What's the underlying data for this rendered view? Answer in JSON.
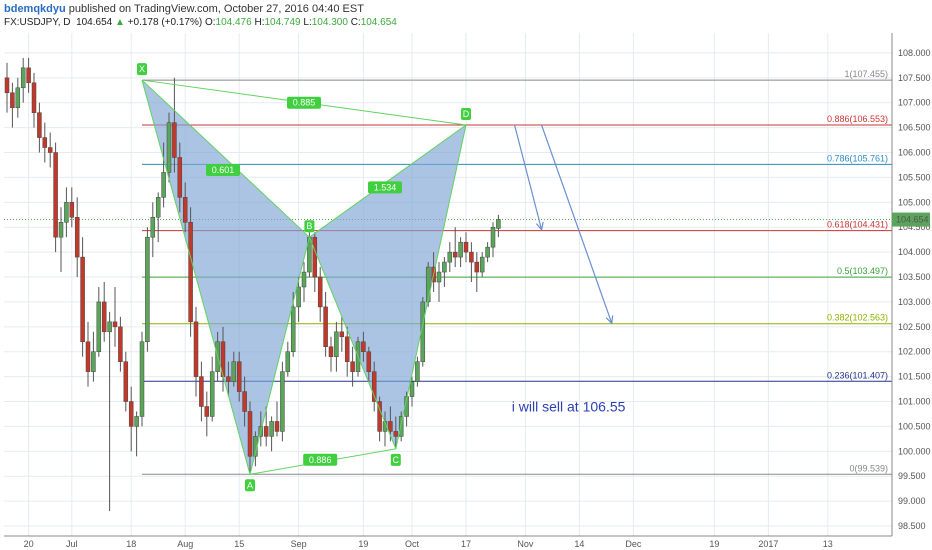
{
  "header": {
    "author": "bdemqkdyu",
    "published": " published on TradingView.com, October 27, 2016 04:40 EST",
    "symbol": "FX:USDJPY, D",
    "price": "104.654",
    "arrow": "▲",
    "change": "+0.178 (+0.17%)",
    "o_label": "O:",
    "o_val": "104.476",
    "h_label": "H:",
    "h_val": "104.749",
    "l_label": "L:",
    "l_val": "104.300",
    "c_label": "C:",
    "c_val": "104.654"
  },
  "colors": {
    "up": "#5aa55a",
    "down": "#c0392b",
    "pattern_fill": "#7ea4d6",
    "pattern_line": "#5fd35f",
    "arrow": "#6a8fd0",
    "note": "#2a3fb3"
  },
  "chart_data": {
    "type": "candlestick",
    "symbol": "FX:USDJPY",
    "timeframe": "D",
    "ylim": [
      98.3,
      108.4
    ],
    "y_ticks": [
      "108.000",
      "107.500",
      "107.000",
      "106.500",
      "106.000",
      "105.500",
      "105.000",
      "104.500",
      "104.000",
      "103.500",
      "103.000",
      "102.500",
      "102.000",
      "101.500",
      "101.000",
      "100.500",
      "100.000",
      "99.500",
      "99.000",
      "98.500"
    ],
    "x_ticks": [
      {
        "label": "20",
        "bar": 4
      },
      {
        "label": "Jul",
        "bar": 12
      },
      {
        "label": "18",
        "bar": 23
      },
      {
        "label": "Aug",
        "bar": 33
      },
      {
        "label": "15",
        "bar": 43
      },
      {
        "label": "Sep",
        "bar": 54
      },
      {
        "label": "19",
        "bar": 66
      },
      {
        "label": "Oct",
        "bar": 75
      },
      {
        "label": "17",
        "bar": 85
      },
      {
        "label": "Nov",
        "bar": 96
      },
      {
        "label": "14",
        "bar": 106
      },
      {
        "label": "Dec",
        "bar": 116
      },
      {
        "label": "19",
        "bar": 131
      },
      {
        "label": "2017",
        "bar": 141
      },
      {
        "label": "13",
        "bar": 152
      }
    ],
    "current_price": "104.654",
    "candles": [
      [
        107.5,
        107.8,
        106.8,
        107.2
      ],
      [
        107.2,
        107.4,
        106.5,
        106.9
      ],
      [
        106.9,
        107.5,
        106.7,
        107.3
      ],
      [
        107.3,
        107.9,
        107.0,
        107.7
      ],
      [
        107.7,
        107.9,
        107.2,
        107.4
      ],
      [
        107.4,
        107.6,
        106.5,
        106.8
      ],
      [
        106.8,
        107.0,
        106.0,
        106.3
      ],
      [
        106.3,
        106.6,
        105.8,
        106.1
      ],
      [
        106.1,
        106.4,
        105.7,
        106.0
      ],
      [
        106.0,
        106.2,
        104.0,
        104.3
      ],
      [
        104.3,
        104.9,
        103.6,
        104.6
      ],
      [
        104.6,
        105.3,
        104.3,
        105.0
      ],
      [
        105.0,
        105.3,
        104.5,
        104.7
      ],
      [
        104.7,
        105.1,
        103.5,
        103.9
      ],
      [
        103.9,
        104.3,
        101.9,
        102.2
      ],
      [
        102.2,
        102.6,
        101.3,
        101.6
      ],
      [
        101.6,
        102.4,
        101.4,
        102.0
      ],
      [
        102.0,
        103.3,
        101.9,
        103.0
      ],
      [
        103.0,
        103.4,
        102.2,
        102.4
      ],
      [
        102.4,
        102.8,
        98.8,
        102.6
      ],
      [
        102.6,
        103.3,
        102.1,
        102.5
      ],
      [
        102.5,
        102.7,
        101.6,
        101.8
      ],
      [
        101.8,
        102.0,
        100.8,
        101.0
      ],
      [
        101.0,
        101.3,
        100.0,
        100.5
      ],
      [
        100.5,
        100.8,
        99.9,
        100.7
      ],
      [
        100.7,
        102.4,
        100.5,
        102.2
      ],
      [
        102.2,
        104.5,
        102.0,
        104.3
      ],
      [
        104.3,
        105.0,
        103.9,
        104.7
      ],
      [
        104.7,
        105.2,
        104.2,
        105.1
      ],
      [
        105.1,
        106.2,
        104.9,
        105.6
      ],
      [
        105.6,
        106.8,
        105.4,
        106.6
      ],
      [
        106.6,
        107.5,
        105.6,
        105.9
      ],
      [
        105.9,
        106.2,
        104.8,
        105.1
      ],
      [
        105.1,
        105.4,
        104.4,
        104.6
      ],
      [
        104.6,
        104.9,
        102.3,
        102.6
      ],
      [
        102.6,
        102.9,
        101.1,
        101.5
      ],
      [
        101.5,
        101.8,
        100.6,
        100.9
      ],
      [
        100.9,
        101.2,
        100.3,
        100.7
      ],
      [
        100.7,
        101.9,
        100.6,
        101.6
      ],
      [
        101.6,
        102.4,
        101.4,
        102.2
      ],
      [
        102.2,
        102.5,
        101.2,
        101.5
      ],
      [
        101.5,
        101.8,
        101.1,
        101.4
      ],
      [
        101.4,
        102.0,
        101.3,
        101.8
      ],
      [
        101.8,
        102.0,
        101.0,
        101.2
      ],
      [
        101.2,
        101.5,
        100.5,
        100.8
      ],
      [
        100.8,
        101.0,
        99.55,
        99.9
      ],
      [
        99.9,
        100.4,
        99.7,
        100.3
      ],
      [
        100.3,
        100.8,
        100.1,
        100.5
      ],
      [
        100.5,
        100.9,
        100.1,
        100.3
      ],
      [
        100.3,
        100.7,
        100.0,
        100.6
      ],
      [
        100.6,
        101.0,
        100.3,
        100.4
      ],
      [
        100.4,
        101.8,
        100.2,
        101.6
      ],
      [
        101.6,
        102.2,
        101.5,
        102.0
      ],
      [
        102.0,
        103.2,
        101.9,
        102.9
      ],
      [
        102.9,
        103.5,
        102.6,
        103.3
      ],
      [
        103.3,
        103.8,
        103.0,
        103.6
      ],
      [
        103.6,
        104.4,
        103.5,
        104.3
      ],
      [
        104.3,
        104.4,
        103.2,
        103.5
      ],
      [
        103.5,
        103.7,
        102.6,
        102.9
      ],
      [
        102.9,
        103.2,
        101.9,
        102.1
      ],
      [
        102.1,
        102.3,
        101.6,
        101.9
      ],
      [
        101.9,
        102.6,
        101.6,
        102.4
      ],
      [
        102.4,
        102.7,
        102.0,
        102.3
      ],
      [
        102.3,
        102.5,
        101.5,
        101.8
      ],
      [
        101.8,
        102.1,
        101.3,
        101.6
      ],
      [
        101.6,
        102.3,
        101.5,
        102.2
      ],
      [
        102.2,
        102.4,
        101.8,
        102.0
      ],
      [
        102.0,
        102.1,
        101.4,
        101.6
      ],
      [
        101.6,
        101.8,
        100.8,
        101.0
      ],
      [
        101.0,
        101.1,
        100.2,
        100.4
      ],
      [
        100.4,
        100.8,
        100.1,
        100.6
      ],
      [
        100.6,
        100.9,
        100.2,
        100.4
      ],
      [
        100.4,
        100.7,
        100.05,
        100.3
      ],
      [
        100.3,
        100.8,
        100.2,
        100.7
      ],
      [
        100.7,
        101.2,
        100.5,
        101.1
      ],
      [
        101.1,
        101.5,
        100.9,
        101.4
      ],
      [
        101.4,
        101.9,
        101.3,
        101.8
      ],
      [
        101.8,
        103.1,
        101.7,
        103.0
      ],
      [
        103.0,
        103.8,
        102.9,
        103.7
      ],
      [
        103.7,
        104.0,
        103.2,
        103.4
      ],
      [
        103.4,
        103.8,
        103.0,
        103.6
      ],
      [
        103.6,
        103.9,
        103.3,
        103.8
      ],
      [
        103.8,
        104.2,
        103.6,
        104.0
      ],
      [
        104.0,
        104.5,
        103.7,
        103.9
      ],
      [
        103.9,
        104.3,
        103.7,
        104.2
      ],
      [
        104.2,
        104.4,
        103.8,
        104.0
      ],
      [
        104.0,
        104.2,
        103.4,
        103.8
      ],
      [
        103.8,
        104.0,
        103.2,
        103.6
      ],
      [
        103.6,
        104.0,
        103.5,
        103.9
      ],
      [
        103.9,
        104.2,
        103.8,
        104.1
      ],
      [
        104.1,
        104.6,
        103.9,
        104.5
      ],
      [
        104.476,
        104.749,
        104.3,
        104.654
      ]
    ],
    "pattern": {
      "name": "bearish bat harmonic",
      "points": [
        {
          "label": "X",
          "bar": 25,
          "price": 107.455
        },
        {
          "label": "A",
          "bar": 45,
          "price": 99.539
        },
        {
          "label": "B",
          "bar": 56,
          "price": 104.3
        },
        {
          "label": "C",
          "bar": 72,
          "price": 100.05
        },
        {
          "label": "D",
          "bar": 85,
          "price": 106.553
        }
      ],
      "ratios": [
        {
          "label": "0.885",
          "bar": 55,
          "price": 107.0
        },
        {
          "label": "0.601",
          "bar": 40,
          "price": 105.65
        },
        {
          "label": "1.534",
          "bar": 70,
          "price": 105.3
        },
        {
          "label": "0.886",
          "bar": 58,
          "price": 99.83
        }
      ]
    },
    "fib_levels": [
      {
        "label": "1(107.455)",
        "price": 107.455,
        "color": "#888888"
      },
      {
        "label": "0.886(106.553)",
        "price": 106.553,
        "color": "#cc3333"
      },
      {
        "label": "0.786(105.761)",
        "price": 105.761,
        "color": "#2c8cc0"
      },
      {
        "label": "0.618(104.431)",
        "price": 104.431,
        "color": "#cc3333"
      },
      {
        "label": "0.5(103.497)",
        "price": 103.497,
        "color": "#3aa23a"
      },
      {
        "label": "0.382(102.563)",
        "price": 102.563,
        "color": "#8cb300"
      },
      {
        "label": "0.236(101.407)",
        "price": 101.407,
        "color": "#22338a"
      },
      {
        "label": "0(99.539)",
        "price": 99.539,
        "color": "#888888"
      }
    ],
    "arrows": [
      {
        "from_bar": 94,
        "from_price": 106.55,
        "to_bar": 99,
        "to_price": 104.45
      },
      {
        "from_bar": 99,
        "from_price": 106.55,
        "to_bar": 112,
        "to_price": 102.57
      }
    ],
    "annotation": "i will sell at 106.55"
  }
}
